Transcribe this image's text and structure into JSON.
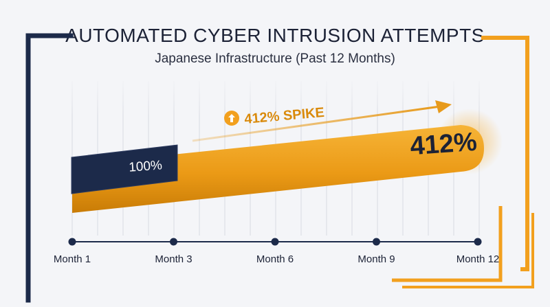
{
  "chart_data": {
    "type": "area",
    "title": "AUTOMATED CYBER INTRUSION ATTEMPTS",
    "subtitle": "Japanese Infrastructure (Past 12 Months)",
    "x_ticks": [
      "Month 1",
      "Month 3",
      "Month 6",
      "Month 9",
      "Month 12"
    ],
    "x": [
      "Month 1",
      "Month 12"
    ],
    "values": [
      100,
      412
    ],
    "start_label": "100%",
    "end_label": "412%",
    "annotation": "412% SPIKE",
    "grid": true
  },
  "colors": {
    "navy": "#1c2a4a",
    "accent": "#f2a01e",
    "accent_dark": "#d98a0c",
    "grid": "#d9dbe2"
  }
}
